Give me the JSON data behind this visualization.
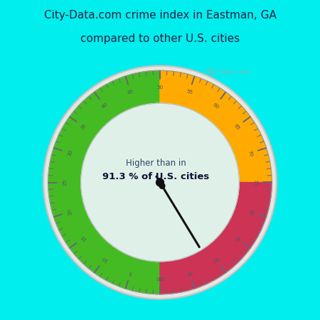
{
  "title_line1": "City-Data.com crime index in Eastman, GA",
  "title_line2": "compared to other U.S. cities",
  "title_bg": "#00EEEE",
  "gauge_bg": "#DFF0E8",
  "outer_bg": "#00EEEE",
  "label_text_line1": "Higher than in",
  "label_text_line2": "91.3 % of U.S. cities",
  "value": 91.3,
  "green_color": "#44BB22",
  "orange_color": "#FFAA00",
  "red_color": "#CC3355",
  "needle_color": "#111111",
  "tick_color": "#666677",
  "tick_label_color": "#555566",
  "outer_ring_color": "#CCCCCC",
  "inner_ring_color": "#E0E0E0",
  "watermark": "City-Data.com",
  "fig_width": 4.5,
  "fig_height": 4.5,
  "dpi": 100
}
